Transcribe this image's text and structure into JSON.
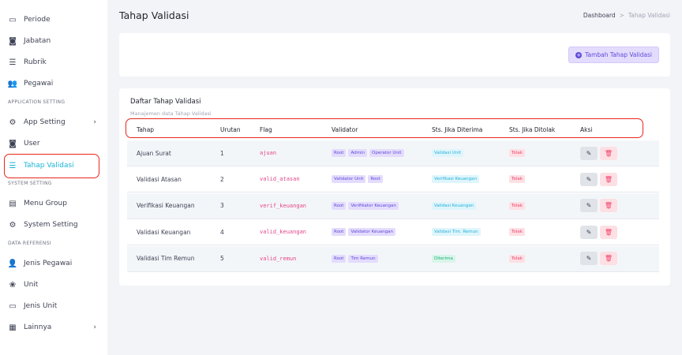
{
  "sidebar": {
    "items": [
      {
        "label": "Periode",
        "icon": "calendar-icon",
        "glyph": "▭"
      },
      {
        "label": "Jabatan",
        "icon": "id-badge-icon",
        "glyph": "◙"
      },
      {
        "label": "Rubrik",
        "icon": "list-card-icon",
        "glyph": "☰"
      },
      {
        "label": "Pegawai",
        "icon": "users-icon",
        "glyph": "👥"
      }
    ],
    "heading_app": "APPLICATION SETTING",
    "app_items": [
      {
        "label": "App Setting",
        "icon": "gear-icon",
        "glyph": "⚙",
        "chevron": "›"
      },
      {
        "label": "User",
        "icon": "user-card-icon",
        "glyph": "◙"
      },
      {
        "label": "Tahap Validasi",
        "icon": "list-icon",
        "glyph": "☰",
        "active": true
      }
    ],
    "heading_sys": "SYSTEM SETTING",
    "sys_items": [
      {
        "label": "Menu Group",
        "icon": "menu-group-icon",
        "glyph": "▤"
      },
      {
        "label": "System Setting",
        "icon": "cog-icon",
        "glyph": "⚙"
      }
    ],
    "heading_ref": "DATA REFERENSI",
    "ref_items": [
      {
        "label": "Jenis Pegawai",
        "icon": "user-list-icon",
        "glyph": "👤"
      },
      {
        "label": "Unit",
        "icon": "unit-icon",
        "glyph": "❀"
      },
      {
        "label": "Jenis Unit",
        "icon": "archive-icon",
        "glyph": "▭"
      },
      {
        "label": "Lainnya",
        "icon": "grid-icon",
        "glyph": "▦",
        "chevron": "›"
      }
    ]
  },
  "header": {
    "title": "Tahap Validasi",
    "breadcrumb": [
      "Dashboard",
      "Tahap Validasi"
    ],
    "sep": ">"
  },
  "toolbar": {
    "add_label": "Tambah Tahap Validasi",
    "add_icon": "+"
  },
  "table": {
    "title": "Daftar Tahap Validasi",
    "subtitle": "Manajemen data Tahap Validasi",
    "columns": [
      "Tahap",
      "Urutan",
      "Flag",
      "Validator",
      "Sts. Jika Diterima",
      "Sts. Jika Ditolak",
      "Aksi"
    ],
    "rows": [
      {
        "tahap": "Ajuan Surat",
        "urutan": "1",
        "flag": "ajuan",
        "validator": [
          "Root",
          "Admin",
          "Operator Unit"
        ],
        "diterima": "Validasi Unit",
        "diterima_color": "cyan",
        "ditolak": "Tolak"
      },
      {
        "tahap": "Validasi Atasan",
        "urutan": "2",
        "flag": "valid_atasan",
        "validator": [
          "Validator Unit",
          "Root"
        ],
        "diterima": "Verifikasi Keuangan",
        "diterima_color": "cyan",
        "ditolak": "Tolak"
      },
      {
        "tahap": "Verifikasi Keuangan",
        "urutan": "3",
        "flag": "verif_keuangan",
        "validator": [
          "Root",
          "Verifikator Keuangan"
        ],
        "diterima": "Validasi Keuangan",
        "diterima_color": "cyan",
        "ditolak": "Tolak"
      },
      {
        "tahap": "Validasi Keuangan",
        "urutan": "4",
        "flag": "valid_keuangan",
        "validator": [
          "Root",
          "Validator Keuangan"
        ],
        "diterima": "Validasi Tim. Remun",
        "diterima_color": "cyan",
        "ditolak": "Tolak"
      },
      {
        "tahap": "Validasi Tim Remun",
        "urutan": "5",
        "flag": "valid_remun",
        "validator": [
          "Root",
          "Tim Remun"
        ],
        "diterima": "Diterima",
        "diterima_color": "green",
        "ditolak": "Tolak"
      }
    ],
    "edit_icon": "✎",
    "delete_icon": "🗑"
  },
  "colors": {
    "accent": "#1bb5d6",
    "primary": "#5e4ad8",
    "danger": "#f1416c",
    "highlight": "#e8261c"
  }
}
